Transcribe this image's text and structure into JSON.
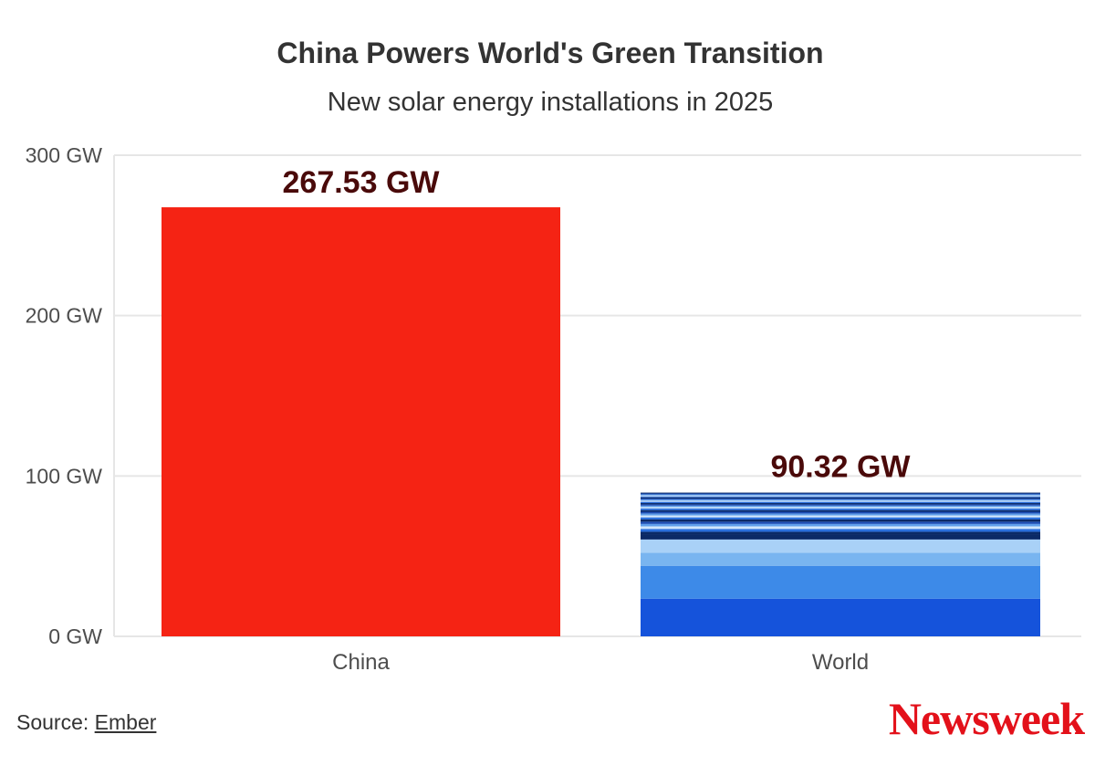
{
  "title": "China Powers World's Green Transition",
  "subtitle": "New solar energy installations in 2025",
  "source": {
    "prefix": "Source: ",
    "link_text": "Ember"
  },
  "brand": "Newsweek",
  "colors": {
    "china": "#f52314",
    "world_stripes": [
      "#1553db",
      "#3d8ae8",
      "#79b5f0",
      "#a9d1f7",
      "#cfe6fb",
      "#2a6fdc",
      "#0b2a66",
      "#5f9fea",
      "#1d4fb5"
    ],
    "data_label": "#4a0a0a",
    "grid": "#e6e6e6",
    "axis_text": "#4d4d4d",
    "brand": "#e3111a"
  },
  "chart_data": {
    "type": "bar",
    "categories": [
      "China",
      "World"
    ],
    "values": [
      267.53,
      90.32
    ],
    "data_labels": [
      "267.53 GW",
      "90.32 GW"
    ],
    "title": "China Powers World's Green Transition",
    "subtitle": "New solar energy installations in 2025",
    "xlabel": "",
    "ylabel": "",
    "ylim": [
      0,
      300
    ],
    "yticks": [
      0,
      100,
      200,
      300
    ],
    "ytick_labels": [
      "0 GW",
      "100 GW",
      "200 GW",
      "300 GW"
    ],
    "grid": true,
    "legend": "none",
    "world_stack_segments": [
      23.5,
      20.5,
      8.2,
      8.2,
      2.8,
      2.0,
      1.8,
      1.6,
      1.5,
      1.4,
      1.4,
      1.3,
      1.2,
      1.2,
      1.1,
      1.0,
      1.0,
      0.9,
      0.9,
      0.8,
      0.8,
      0.8,
      0.7,
      0.7,
      0.7,
      0.7,
      0.6,
      0.6,
      0.6,
      0.6,
      0.52
    ]
  }
}
